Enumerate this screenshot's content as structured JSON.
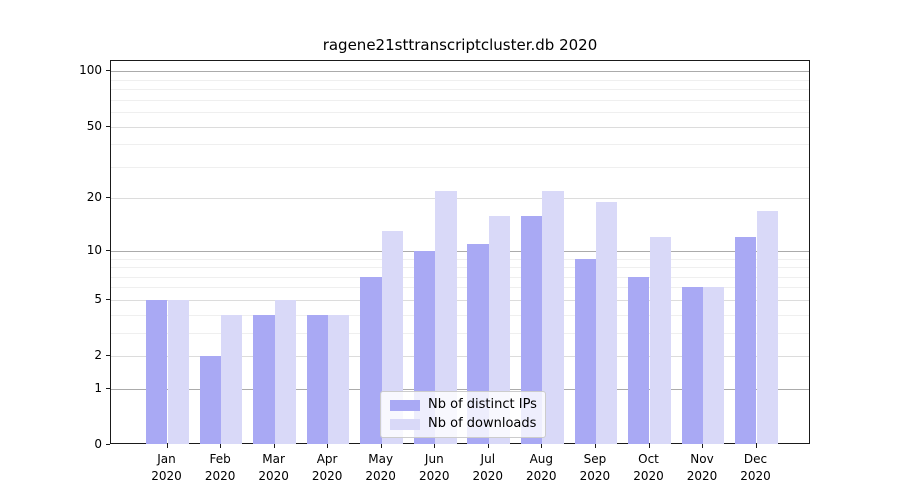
{
  "title": "ragene21sttranscriptcluster.db 2020",
  "chart_data": {
    "type": "bar",
    "title": "ragene21sttranscriptcluster.db 2020",
    "categories": [
      "Jan 2020",
      "Feb 2020",
      "Mar 2020",
      "Apr 2020",
      "May 2020",
      "Jun 2020",
      "Jul 2020",
      "Aug 2020",
      "Sep 2020",
      "Oct 2020",
      "Nov 2020",
      "Dec 2020"
    ],
    "series": [
      {
        "name": "Nb of distinct IPs",
        "color": "#a9a9f4",
        "values": [
          5,
          2,
          4,
          4,
          7,
          10,
          11,
          16,
          9,
          7,
          6,
          12
        ]
      },
      {
        "name": "Nb of downloads",
        "color": "#d9d9f8",
        "values": [
          5,
          4,
          5,
          4,
          13,
          22,
          16,
          22,
          19,
          12,
          6,
          17
        ]
      }
    ],
    "yscale": "log1p",
    "yticks": [
      0,
      1,
      2,
      5,
      10,
      20,
      50,
      100
    ],
    "major_gridlines": [
      1,
      10,
      100
    ],
    "mid_gridlines": [
      2,
      5,
      20,
      50
    ],
    "minor_gridlines": [
      3,
      4,
      6,
      7,
      8,
      9,
      30,
      40,
      60,
      70,
      80,
      90
    ],
    "ylim": [
      0,
      113
    ],
    "grid": "horizontal",
    "legend_position": "lower center",
    "colors": {
      "bar_dark": "#a9a9f4",
      "bar_light": "#d9d9f8",
      "grid_major": "#ababab",
      "grid_mid": "#dcdcdc",
      "grid_minor": "#efefef",
      "axis": "#1a1a1a"
    }
  }
}
